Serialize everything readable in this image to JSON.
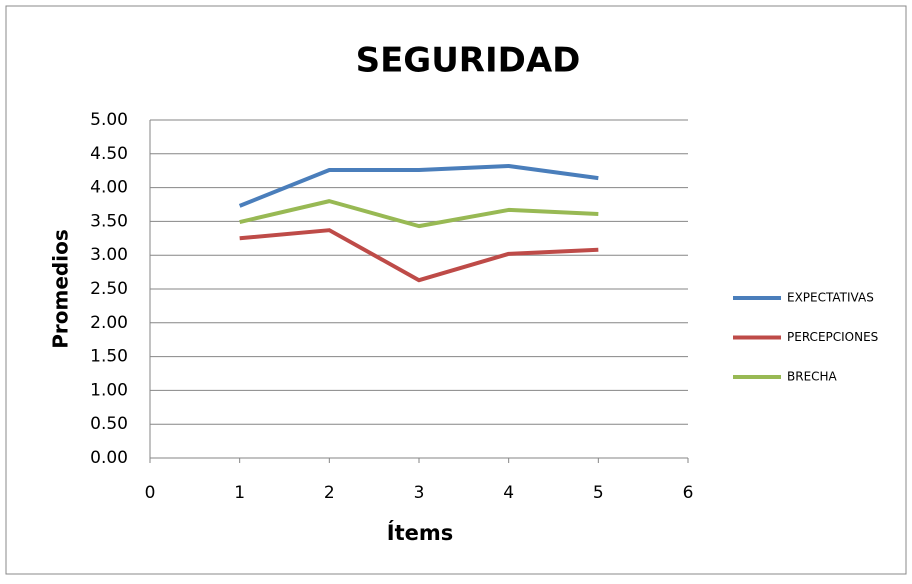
{
  "chart_data": {
    "type": "line",
    "title": "SEGURIDAD",
    "x_label": "Ítems",
    "y_label": "Promedios",
    "x": [
      1,
      2,
      3,
      4,
      5
    ],
    "series": [
      {
        "name": "EXPECTATIVAS",
        "color": "#4a7ebb",
        "values": [
          3.73,
          4.26,
          4.26,
          4.32,
          4.14
        ]
      },
      {
        "name": "PERCEPCIONES",
        "color": "#be4b48",
        "values": [
          3.25,
          3.37,
          2.63,
          3.02,
          3.08
        ]
      },
      {
        "name": "BRECHA",
        "color": "#98b954",
        "values": [
          3.49,
          3.8,
          3.43,
          3.67,
          3.61
        ]
      }
    ],
    "xlim": [
      0,
      6
    ],
    "xticks": [
      0,
      1,
      2,
      3,
      4,
      5,
      6
    ],
    "ylim": [
      0,
      5
    ],
    "yticks": [
      {
        "value": 0,
        "label": "0.00"
      },
      {
        "value": 0.5,
        "label": "0.50"
      },
      {
        "value": 1,
        "label": "1.00"
      },
      {
        "value": 1.5,
        "label": "1.50"
      },
      {
        "value": 2,
        "label": "2.00"
      },
      {
        "value": 2.5,
        "label": "2.50"
      },
      {
        "value": 3,
        "label": "3.00"
      },
      {
        "value": 3.5,
        "label": "3.50"
      },
      {
        "value": 4,
        "label": "4.00"
      },
      {
        "value": 4.5,
        "label": "4.50"
      },
      {
        "value": 5,
        "label": "5.00"
      }
    ],
    "grid": true,
    "legend": "right"
  }
}
